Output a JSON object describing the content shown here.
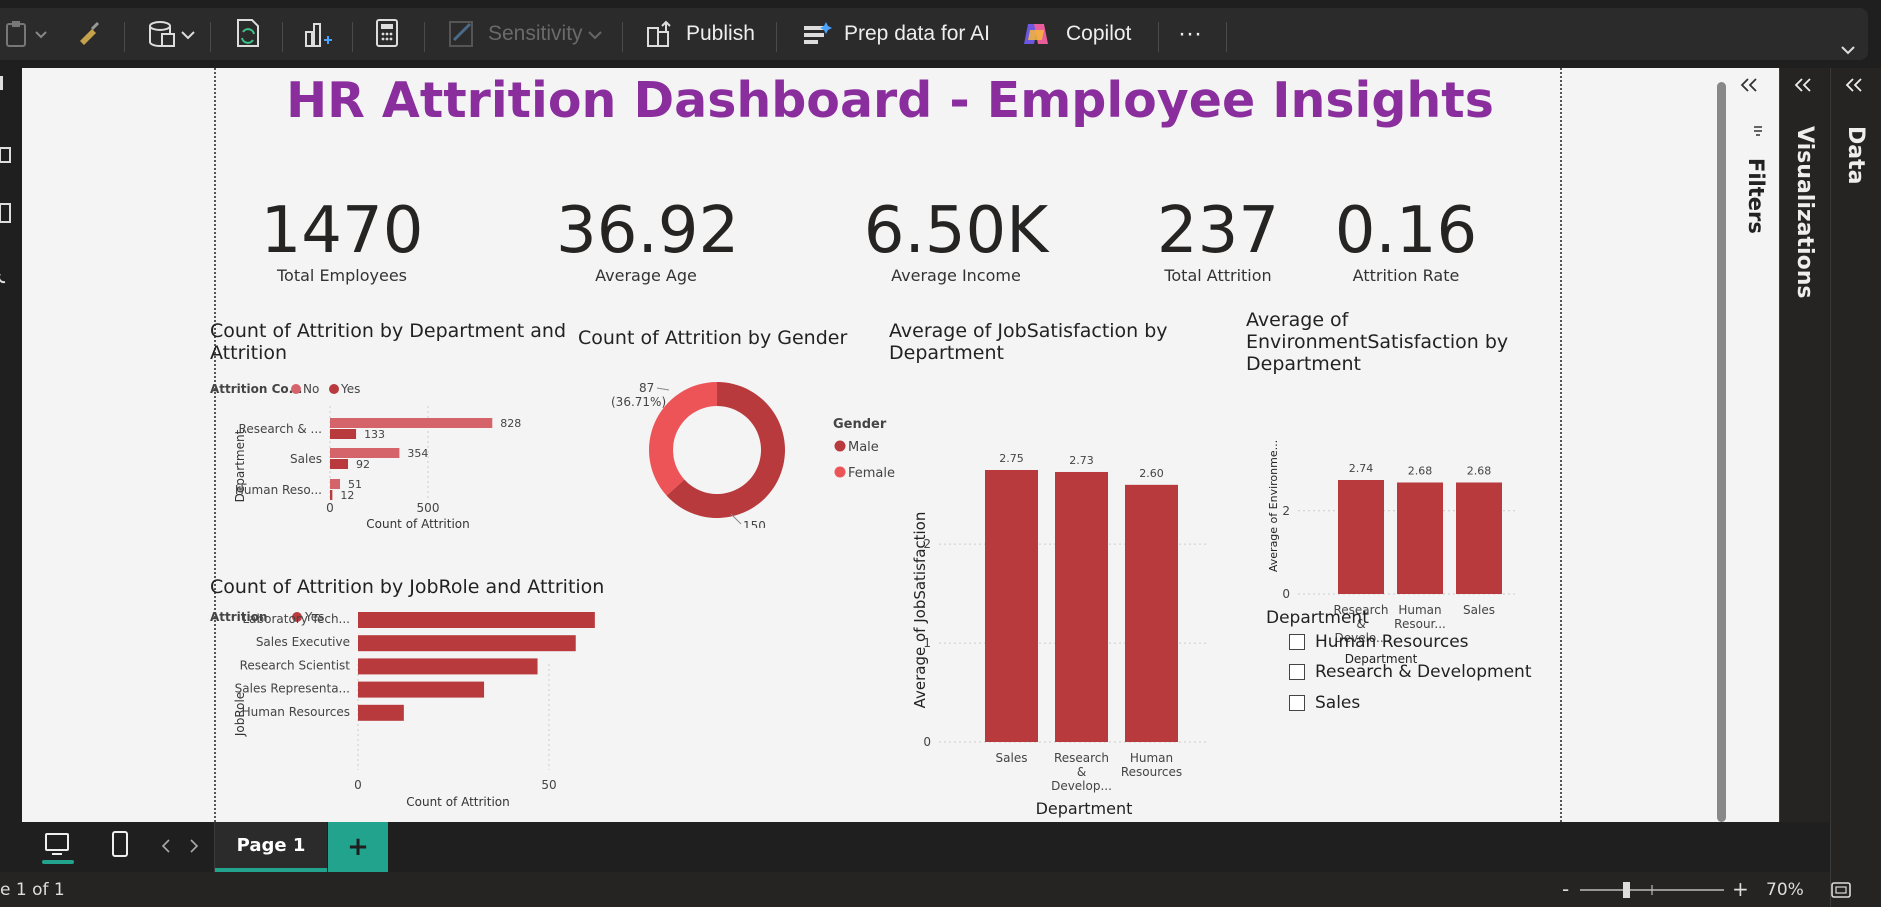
{
  "ribbon": {
    "sensitivity_label": "Sensitivity",
    "publish_label": "Publish",
    "prep_label": "Prep data for AI",
    "copilot_label": "Copilot",
    "more_label": "···"
  },
  "report": {
    "title": "HR Attrition Dashboard - Employee Insights",
    "kpis": [
      {
        "value": "1470",
        "label": "Total Employees"
      },
      {
        "value": "36.92",
        "label": "Average Age"
      },
      {
        "value": "6.50K",
        "label": "Average Income"
      },
      {
        "value": "237",
        "label": "Total Attrition"
      },
      {
        "value": "0.16",
        "label": "Attrition Rate"
      }
    ],
    "slicer": {
      "title": "Department",
      "items": [
        "Human Resources",
        "Research & Development",
        "Sales"
      ]
    }
  },
  "colors": {
    "dark_red": "#b83a3d",
    "light_red": "#d4636a",
    "female": "#ec5457",
    "male": "#b83a3d",
    "title_purple": "#8a2e9e",
    "accent_teal": "#22a38d"
  },
  "chart_data": [
    {
      "type": "bar",
      "orientation": "horizontal",
      "title": "Count of Attrition by Department and Attrition",
      "legend_title": "Attrition Co...",
      "legend_placement": "top-left",
      "categories": [
        "Research & ...",
        "Sales",
        "Human Reso..."
      ],
      "series": [
        {
          "name": "No",
          "values": [
            828,
            354,
            51
          ]
        },
        {
          "name": "Yes",
          "values": [
            133,
            92,
            12
          ]
        }
      ],
      "xlabel": "Count of Attrition",
      "ylabel": "Department",
      "x_ticks": [
        "0",
        "500"
      ],
      "xlim": [
        0,
        1000
      ]
    },
    {
      "type": "pie",
      "donut": true,
      "title": "Count of Attrition by Gender",
      "legend_title": "Gender",
      "legend_placement": "right",
      "slices": [
        {
          "name": "Male",
          "value": 150,
          "label": "150",
          "pct": "(63.29%)"
        },
        {
          "name": "Female",
          "value": 87,
          "label": "87",
          "pct": "(36.71%)"
        }
      ]
    },
    {
      "type": "bar",
      "orientation": "horizontal",
      "title": "Count of Attrition by JobRole and Attrition",
      "legend_title": "Attrition",
      "legend_placement": "top-left",
      "categories": [
        "Laboratory Tech...",
        "Sales Executive",
        "Research Scientist",
        "Sales Representa...",
        "Human Resources"
      ],
      "series": [
        {
          "name": "Yes",
          "values": [
            62,
            57,
            47,
            33,
            12
          ]
        }
      ],
      "xlabel": "Count of Attrition",
      "ylabel": "JobRole",
      "x_ticks": [
        "0",
        "50"
      ],
      "xlim": [
        0,
        65
      ]
    },
    {
      "type": "bar",
      "orientation": "vertical",
      "title": "Average of JobSatisfaction by Department",
      "categories": [
        [
          "Sales"
        ],
        [
          "Research",
          "&",
          "Develop..."
        ],
        [
          "Human",
          "Resources"
        ]
      ],
      "values": [
        2.75,
        2.73,
        2.6
      ],
      "data_labels": [
        "2.75",
        "2.73",
        "2.60"
      ],
      "xlabel": "Department",
      "ylabel": "Average of JobSatisfaction",
      "y_ticks": [
        "0",
        "1",
        "2"
      ],
      "ylim": [
        0,
        2.75
      ],
      "grid": true
    },
    {
      "type": "bar",
      "orientation": "vertical",
      "title": "Average of EnvironmentSatisfaction by Department",
      "categories": [
        [
          "Research",
          "&",
          "Develo..."
        ],
        [
          "Human",
          "Resour..."
        ],
        [
          "Sales"
        ]
      ],
      "values": [
        2.74,
        2.68,
        2.68
      ],
      "data_labels": [
        "2.74",
        "2.68",
        "2.68"
      ],
      "xlabel": "Department",
      "ylabel": "Average of Environme...",
      "y_ticks": [
        "0",
        "2"
      ],
      "ylim": [
        0,
        2.74
      ],
      "grid": true
    }
  ],
  "panes": {
    "filters_label": "Filters",
    "visualizations_label": "Visualizations",
    "data_label": "Data"
  },
  "pages": {
    "tabs": [
      {
        "label": "Page 1"
      }
    ],
    "add_label": "+"
  },
  "status": {
    "page_indicator": "e 1 of 1",
    "zoom_minus": "-",
    "zoom_plus": "+",
    "zoom_level": "70%",
    "zoom_fraction": 0.5
  }
}
